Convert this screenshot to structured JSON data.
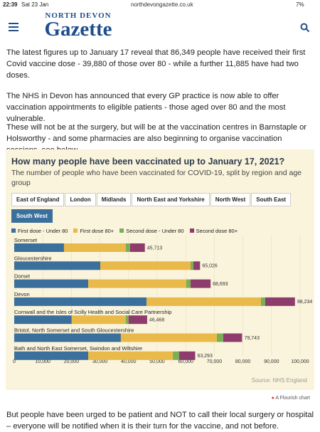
{
  "status_bar": {
    "time": "22:39",
    "date": "Sat 23 Jan",
    "url": "northdevongazette.co.uk",
    "battery": "7%"
  },
  "header": {
    "logo_top": "NORTH DEVON",
    "logo": "Gazette"
  },
  "article": {
    "paragraphs": [
      "The latest figures up to January 17 reveal that 86,349 people have received their first Covid vaccine dose - 39,880 of those over 80 - while a further 11,885 have had two doses.",
      "The NHS in Devon has announced that every GP practice is now able to offer vaccination appointments to eligible patients - those aged over 80 and the most vulnerable.",
      "These will not be at the surgery, but will be at the vaccination centres in Barnstaple or Holsworthy - and some pharmacies are also beginning to organise vaccination sessions, see below."
    ],
    "after_chart": "But people have been urged to be patient and NOT to call their local surgery or hospital – everyone will be notified when it is their turn for the vaccine, and not before."
  },
  "chart_data": {
    "type": "stacked-bar-horizontal",
    "title": "How many people have been vaccinated up to January 17, 2021?",
    "subtitle": "The number of people who have been vaccinated for COVID-19, split by region and age group",
    "filters": [
      "East of England",
      "London",
      "Midlands",
      "North East and Yorkshire",
      "North West",
      "South East",
      "South West"
    ],
    "selected_filter": "South West",
    "categories": [
      "Somerset",
      "Gloucestershire",
      "Dorset",
      "Devon",
      "Cornwall and the Isles of Scilly Health and Social Care Partnership",
      "Bristol, North Somerset and South Gloucestershire",
      "Bath and North East Somerset, Swindon and Wiltshire"
    ],
    "series": [
      {
        "name": "First dose - Under 80",
        "color": "#3b6f9c",
        "values": [
          17400,
          30100,
          25900,
          46300,
          20100,
          37300,
          25900
        ]
      },
      {
        "name": "First dose 80+",
        "color": "#e9b949",
        "values": [
          21600,
          31600,
          34300,
          40000,
          18900,
          33600,
          29600
        ]
      },
      {
        "name": "Second dose - Under 80",
        "color": "#7aaf57",
        "values": [
          1500,
          1000,
          1500,
          1500,
          1000,
          2200,
          2200
        ]
      },
      {
        "name": "Second dose 80+",
        "color": "#8e3b6e",
        "values": [
          5200,
          2300,
          7000,
          10400,
          6500,
          6600,
          5600
        ]
      }
    ],
    "totals": [
      45713,
      65026,
      68693,
      98234,
      46468,
      79743,
      63293
    ],
    "total_labels": [
      "45,713",
      "65,026",
      "68,693",
      "98,234",
      "46,468",
      "79,743",
      "63,293"
    ],
    "xlim": [
      0,
      100000
    ],
    "xticks": [
      0,
      {
        "value": 10000,
        "label": "10,000"
      },
      {
        "value": 20000,
        "label": "20,000"
      },
      {
        "value": 30000,
        "label": "30,000"
      },
      {
        "value": 40000,
        "label": "40,000"
      },
      {
        "value": 50000,
        "label": "50,000"
      },
      {
        "value": 60000,
        "label": "60,000"
      },
      {
        "value": 70000,
        "label": "70,000"
      },
      {
        "value": 80000,
        "label": "80,000"
      },
      {
        "value": 90000,
        "label": "90,000"
      },
      {
        "value": 100000,
        "label": "100,000"
      }
    ],
    "grid": true,
    "source": "Source: NHS England",
    "credit": "A Flourish chart"
  }
}
